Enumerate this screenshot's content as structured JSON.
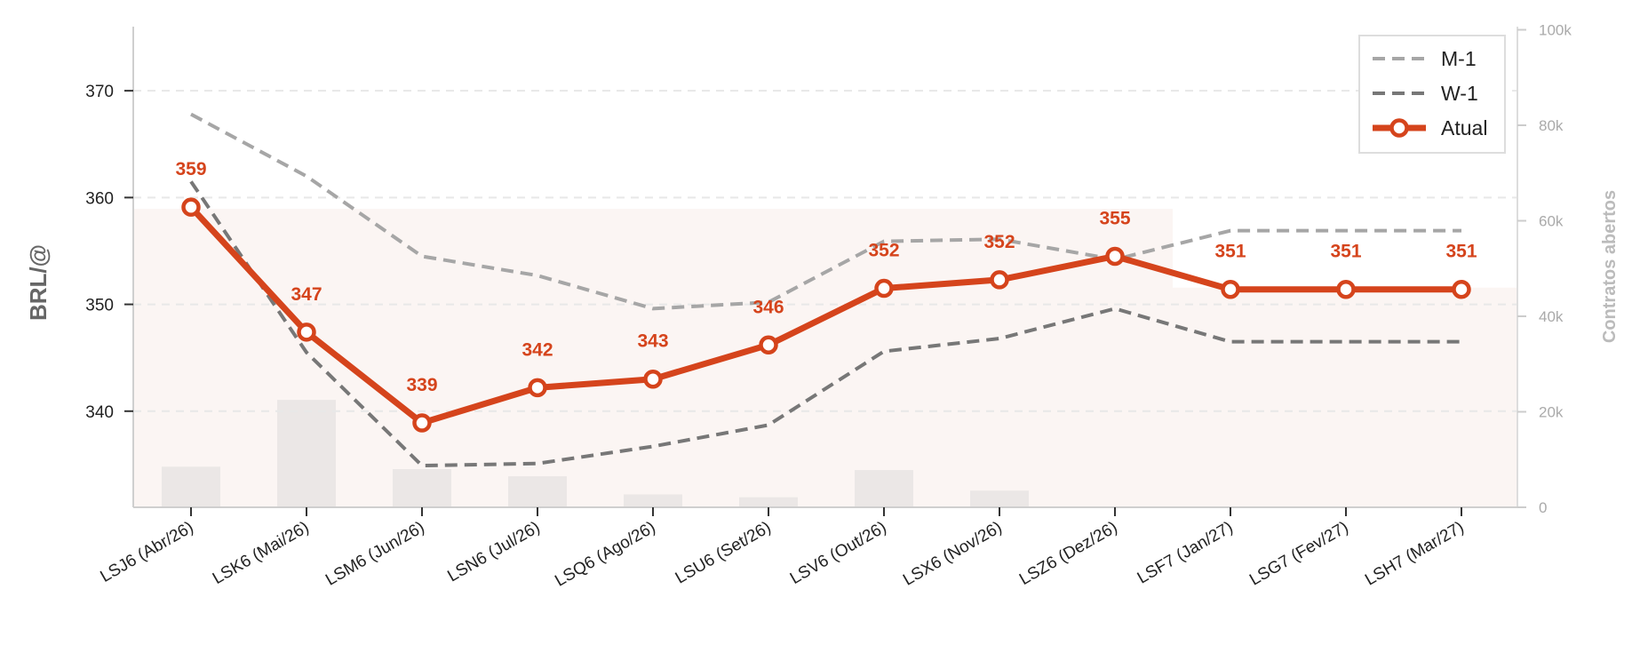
{
  "chart_data": {
    "type": "line",
    "categories": [
      "LSJ6 (Abr/26)",
      "LSK6 (Mai/26)",
      "LSM6 (Jun/26)",
      "LSN6 (Jul/26)",
      "LSQ6 (Ago/26)",
      "LSU6 (Set/26)",
      "LSV6 (Out/26)",
      "LSX6 (Nov/26)",
      "LSZ6 (Dez/26)",
      "LSF7 (Jan/27)",
      "LSG7 (Fev/27)",
      "LSH7 (Mar/27)"
    ],
    "series": [
      {
        "name": "M-1",
        "values": [
          367.8,
          362.0,
          354.5,
          352.7,
          349.6,
          350.2,
          355.9,
          356.1,
          354.2,
          356.9,
          356.9,
          356.9
        ],
        "color": "#a6a6a6",
        "style": "dashed"
      },
      {
        "name": "W-1",
        "values": [
          361.5,
          345.5,
          334.9,
          335.1,
          336.7,
          338.7,
          345.6,
          346.8,
          349.6,
          346.5,
          346.5,
          346.5
        ],
        "color": "#777777",
        "style": "dashed"
      },
      {
        "name": "Atual",
        "values": [
          359.1,
          347.4,
          338.9,
          342.2,
          343.0,
          346.2,
          351.5,
          352.3,
          354.5,
          351.4,
          351.4,
          351.4
        ],
        "color": "#d5441c",
        "style": "solid-markers"
      }
    ],
    "data_labels": [
      "359",
      "347",
      "339",
      "342",
      "343",
      "346",
      "352",
      "352",
      "355",
      "351",
      "351",
      "351"
    ],
    "open_interest": {
      "ylabel": "Contratos abertos",
      "bars": [
        8500,
        22500,
        8000,
        6500,
        2700,
        2100,
        7800,
        3500,
        0,
        0,
        0,
        0
      ],
      "area": [
        62500,
        62500,
        62500,
        62500,
        62500,
        62500,
        62500,
        62500,
        62500,
        46000,
        46000,
        46000
      ],
      "ylim": [
        0,
        100000
      ],
      "ticks": [
        "0",
        "20k",
        "40k",
        "60k",
        "80k",
        "100k"
      ]
    },
    "ylabel": "BRL/@",
    "ylim": [
      331,
      376
    ],
    "yticks": [
      340,
      350,
      360,
      370
    ],
    "grid": true,
    "legend_position": "top-right"
  }
}
